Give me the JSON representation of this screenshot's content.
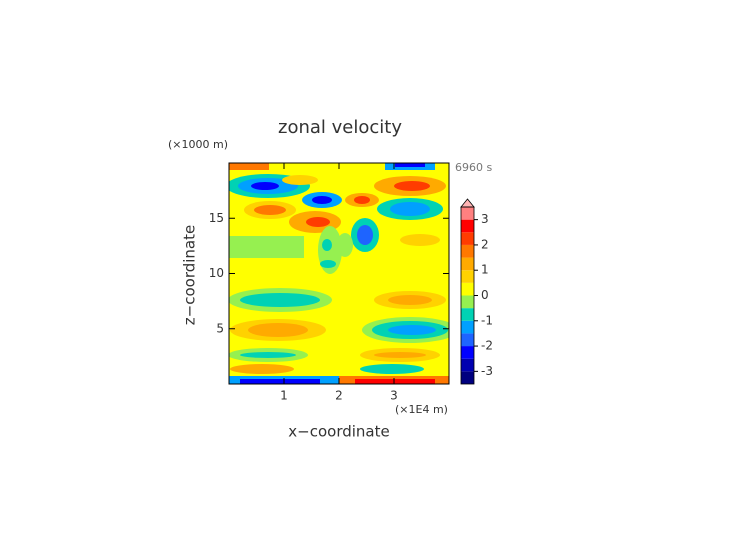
{
  "chart_data": {
    "type": "contour",
    "title": "zonal velocity",
    "x_label": "x−coordinate",
    "y_label": "z−coordinate",
    "x_unit": "(×1E4 m)",
    "y_unit": "(×1000 m)",
    "time_label": "6960 s",
    "xlim": [
      0,
      4
    ],
    "xticks": [
      1,
      2,
      3
    ],
    "ylim": [
      0,
      20
    ],
    "yticks": [
      5,
      10,
      15
    ],
    "colorbar": {
      "lim": [
        -3.5,
        3.5
      ],
      "levels": [
        -3.5,
        -3,
        -2.5,
        -2,
        -1.5,
        -1,
        -0.5,
        0,
        0.5,
        1,
        1.5,
        2,
        2.5,
        3,
        3.5
      ],
      "colors": [
        "#00007f",
        "#0000b0",
        "#0000ff",
        "#1e64ff",
        "#00a0ff",
        "#00d2b4",
        "#96f050",
        "#ffff00",
        "#ffd200",
        "#ffaa00",
        "#ff7800",
        "#ff3c00",
        "#ff0000",
        "#ff8080"
      ],
      "over_color": "#ffb4b4",
      "ticks": [
        -3,
        -2,
        -1,
        0,
        1,
        2,
        3
      ]
    }
  }
}
